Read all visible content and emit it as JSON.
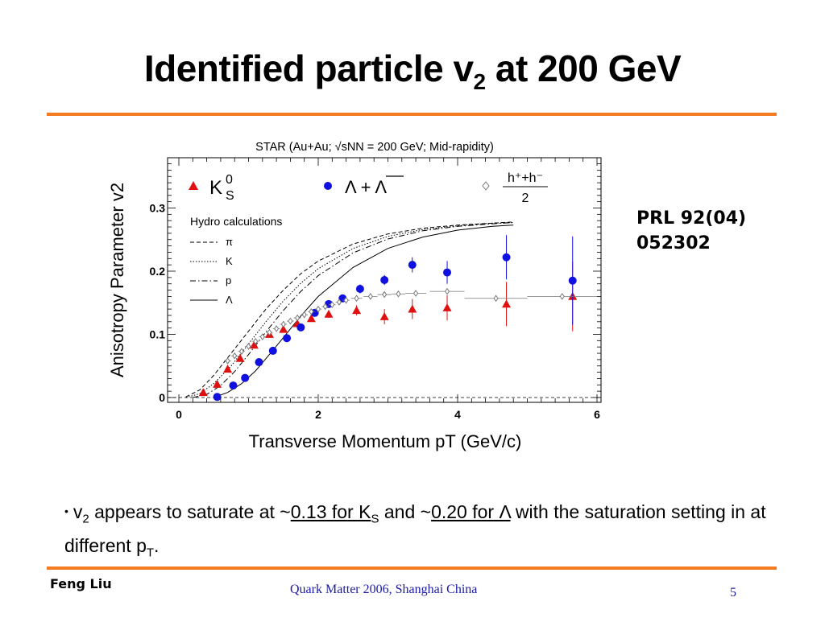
{
  "slide": {
    "title_main": "Identified particle v",
    "title_sub": "2",
    "title_tail": " at 200 GeV",
    "reference_line1": "PRL 92(04)",
    "reference_line2": "052302",
    "bullet": {
      "marker": "•",
      "p1": "v",
      "p1_sub": "2",
      "p2": " appears to saturate at ~",
      "hl1": "0.13 for K",
      "hl1_sub": "S",
      "p3": " and ~",
      "hl2": "0.20 for Λ",
      "p4": " with the saturation setting in at different p",
      "p4_sub": "T",
      "p5": "."
    },
    "footer": {
      "author": "Feng Liu",
      "conference": "Quark Matter 2006,  Shanghai  China",
      "page": "5"
    },
    "accent_color": "#f47b20"
  },
  "chart_data": {
    "type": "scatter",
    "title": "STAR (Au+Au; √sNN = 200 GeV; Mid-rapidity)",
    "xlabel": "Transverse Momentum pT (GeV/c)",
    "ylabel": "Anisotropy Parameter v2",
    "xlim": [
      0,
      6
    ],
    "ylim": [
      0,
      0.38
    ],
    "xticks": [
      "0",
      "2",
      "4",
      "6"
    ],
    "yticks": [
      "0",
      "0.1",
      "0.2",
      "0.3"
    ],
    "grid": false,
    "series": [
      {
        "name": "K0S",
        "marker": "triangle",
        "color": "#e01010",
        "points": [
          {
            "x": 0.35,
            "y": 0.008,
            "err": 0.003
          },
          {
            "x": 0.55,
            "y": 0.021,
            "err": 0.003
          },
          {
            "x": 0.7,
            "y": 0.045,
            "err": 0.003
          },
          {
            "x": 0.88,
            "y": 0.062,
            "err": 0.003
          },
          {
            "x": 1.08,
            "y": 0.083,
            "err": 0.004
          },
          {
            "x": 1.3,
            "y": 0.1,
            "err": 0.004
          },
          {
            "x": 1.5,
            "y": 0.108,
            "err": 0.004
          },
          {
            "x": 1.7,
            "y": 0.117,
            "err": 0.005
          },
          {
            "x": 1.9,
            "y": 0.125,
            "err": 0.005
          },
          {
            "x": 2.15,
            "y": 0.132,
            "err": 0.006
          },
          {
            "x": 2.55,
            "y": 0.138,
            "err": 0.008
          },
          {
            "x": 2.95,
            "y": 0.128,
            "err": 0.012
          },
          {
            "x": 3.35,
            "y": 0.14,
            "err": 0.016
          },
          {
            "x": 3.85,
            "y": 0.142,
            "err": 0.02
          },
          {
            "x": 4.7,
            "y": 0.148,
            "err": 0.035
          },
          {
            "x": 5.65,
            "y": 0.16,
            "err": 0.055
          }
        ]
      },
      {
        "name": "Λ + Λ̄",
        "marker": "circle",
        "color": "#1010e0",
        "points": [
          {
            "x": 0.55,
            "y": 0.001,
            "err": 0.004
          },
          {
            "x": 0.78,
            "y": 0.019,
            "err": 0.004
          },
          {
            "x": 0.95,
            "y": 0.031,
            "err": 0.004
          },
          {
            "x": 1.15,
            "y": 0.056,
            "err": 0.004
          },
          {
            "x": 1.35,
            "y": 0.074,
            "err": 0.004
          },
          {
            "x": 1.55,
            "y": 0.094,
            "err": 0.004
          },
          {
            "x": 1.75,
            "y": 0.111,
            "err": 0.005
          },
          {
            "x": 1.95,
            "y": 0.134,
            "err": 0.005
          },
          {
            "x": 2.15,
            "y": 0.148,
            "err": 0.005
          },
          {
            "x": 2.35,
            "y": 0.157,
            "err": 0.006
          },
          {
            "x": 2.6,
            "y": 0.172,
            "err": 0.007
          },
          {
            "x": 2.95,
            "y": 0.186,
            "err": 0.008
          },
          {
            "x": 3.35,
            "y": 0.21,
            "err": 0.012
          },
          {
            "x": 3.85,
            "y": 0.198,
            "err": 0.018
          },
          {
            "x": 4.7,
            "y": 0.222,
            "err": 0.035
          },
          {
            "x": 5.65,
            "y": 0.185,
            "err": 0.07
          }
        ]
      },
      {
        "name": "(h+ + h-)/2",
        "marker": "open-diamond",
        "color": "#777777",
        "points": [
          {
            "x": 0.7,
            "y": 0.058,
            "xerr": 0.05
          },
          {
            "x": 0.8,
            "y": 0.066,
            "xerr": 0.05
          },
          {
            "x": 0.9,
            "y": 0.073,
            "xerr": 0.05
          },
          {
            "x": 1.0,
            "y": 0.081,
            "xerr": 0.05
          },
          {
            "x": 1.1,
            "y": 0.089,
            "xerr": 0.05
          },
          {
            "x": 1.2,
            "y": 0.096,
            "xerr": 0.05
          },
          {
            "x": 1.3,
            "y": 0.103,
            "xerr": 0.05
          },
          {
            "x": 1.4,
            "y": 0.109,
            "xerr": 0.05
          },
          {
            "x": 1.5,
            "y": 0.116,
            "xerr": 0.05
          },
          {
            "x": 1.6,
            "y": 0.121,
            "xerr": 0.05
          },
          {
            "x": 1.7,
            "y": 0.126,
            "xerr": 0.05
          },
          {
            "x": 1.8,
            "y": 0.131,
            "xerr": 0.05
          },
          {
            "x": 1.9,
            "y": 0.136,
            "xerr": 0.05
          },
          {
            "x": 2.0,
            "y": 0.14,
            "xerr": 0.05
          },
          {
            "x": 2.1,
            "y": 0.144,
            "xerr": 0.05
          },
          {
            "x": 2.2,
            "y": 0.147,
            "xerr": 0.05
          },
          {
            "x": 2.3,
            "y": 0.151,
            "xerr": 0.05
          },
          {
            "x": 2.4,
            "y": 0.154,
            "xerr": 0.05
          },
          {
            "x": 2.55,
            "y": 0.157,
            "xerr": 0.08
          },
          {
            "x": 2.75,
            "y": 0.16,
            "xerr": 0.1
          },
          {
            "x": 2.95,
            "y": 0.163,
            "xerr": 0.1
          },
          {
            "x": 3.15,
            "y": 0.164,
            "xerr": 0.1
          },
          {
            "x": 3.4,
            "y": 0.165,
            "xerr": 0.15
          },
          {
            "x": 3.85,
            "y": 0.168,
            "xerr": 0.25
          },
          {
            "x": 4.55,
            "y": 0.157,
            "xerr": 0.45
          },
          {
            "x": 5.5,
            "y": 0.16,
            "xerr": 0.5
          }
        ]
      }
    ],
    "hydro": {
      "legend_title": "Hydro calculations",
      "curves": [
        {
          "name": "π",
          "dash": "5,3",
          "points": [
            [
              0.1,
              0.001
            ],
            [
              0.3,
              0.012
            ],
            [
              0.5,
              0.035
            ],
            [
              0.75,
              0.07
            ],
            [
              1.0,
              0.105
            ],
            [
              1.25,
              0.14
            ],
            [
              1.5,
              0.17
            ],
            [
              1.75,
              0.196
            ],
            [
              2.0,
              0.216
            ],
            [
              2.5,
              0.243
            ],
            [
              3.0,
              0.259
            ],
            [
              3.5,
              0.268
            ],
            [
              4.0,
              0.273
            ],
            [
              4.5,
              0.276
            ],
            [
              4.8,
              0.278
            ]
          ]
        },
        {
          "name": "K",
          "dash": "1.5,2",
          "points": [
            [
              0.1,
              0.0
            ],
            [
              0.3,
              0.006
            ],
            [
              0.5,
              0.022
            ],
            [
              0.75,
              0.05
            ],
            [
              1.0,
              0.085
            ],
            [
              1.25,
              0.12
            ],
            [
              1.5,
              0.153
            ],
            [
              1.75,
              0.181
            ],
            [
              2.0,
              0.204
            ],
            [
              2.5,
              0.236
            ],
            [
              3.0,
              0.255
            ],
            [
              3.5,
              0.266
            ],
            [
              4.0,
              0.272
            ],
            [
              4.5,
              0.276
            ],
            [
              4.8,
              0.277
            ]
          ]
        },
        {
          "name": "p",
          "dash": "7,3,1.5,3",
          "points": [
            [
              0.2,
              0.0
            ],
            [
              0.4,
              0.005
            ],
            [
              0.6,
              0.019
            ],
            [
              0.8,
              0.041
            ],
            [
              1.0,
              0.068
            ],
            [
              1.25,
              0.104
            ],
            [
              1.5,
              0.138
            ],
            [
              1.75,
              0.168
            ],
            [
              2.0,
              0.193
            ],
            [
              2.5,
              0.229
            ],
            [
              3.0,
              0.251
            ],
            [
              3.5,
              0.264
            ],
            [
              4.0,
              0.271
            ],
            [
              4.5,
              0.275
            ],
            [
              4.8,
              0.277
            ]
          ]
        },
        {
          "name": "Λ",
          "dash": "",
          "points": [
            [
              0.5,
              0.0
            ],
            [
              0.7,
              0.008
            ],
            [
              0.9,
              0.022
            ],
            [
              1.1,
              0.042
            ],
            [
              1.3,
              0.068
            ],
            [
              1.5,
              0.095
            ],
            [
              1.75,
              0.129
            ],
            [
              2.0,
              0.16
            ],
            [
              2.5,
              0.206
            ],
            [
              3.0,
              0.236
            ],
            [
              3.5,
              0.254
            ],
            [
              4.0,
              0.265
            ],
            [
              4.5,
              0.271
            ],
            [
              4.8,
              0.273
            ]
          ]
        }
      ]
    },
    "legend": {
      "k0s_label": "K",
      "k0s_sup": "0",
      "k0s_sub": "S",
      "lambda_label": "Λ + Λ",
      "hadron_num": "h⁺+h⁻",
      "hadron_den": "2"
    }
  }
}
